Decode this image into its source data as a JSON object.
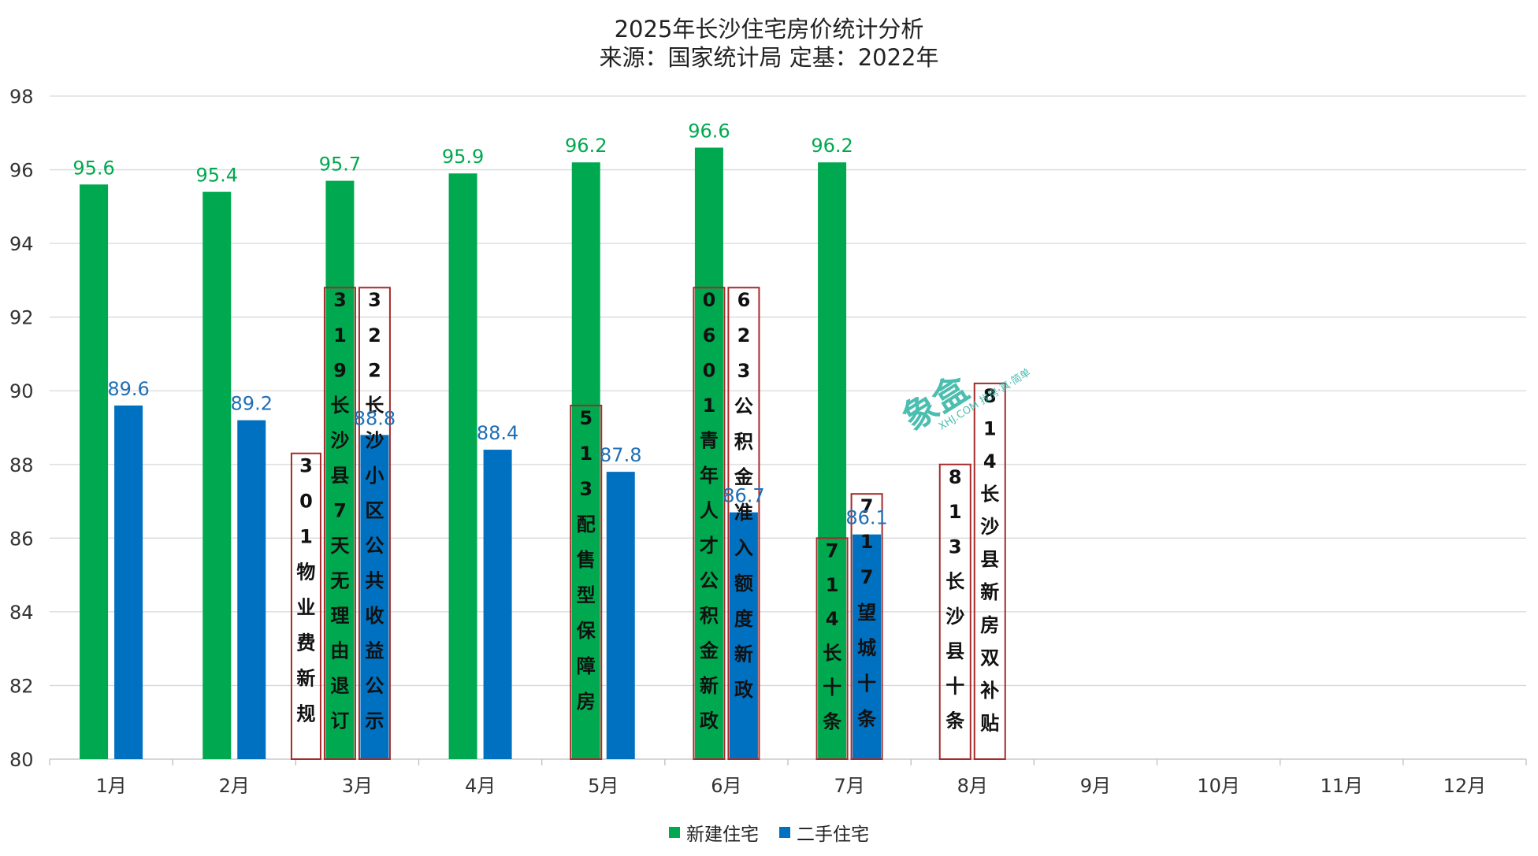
{
  "chart_data": {
    "type": "bar",
    "title": "2025年长沙住宅房价统计分析",
    "subtitle": "来源：国家统计局 定基：2022年",
    "categories": [
      "1月",
      "2月",
      "3月",
      "4月",
      "5月",
      "6月",
      "7月",
      "8月",
      "9月",
      "10月",
      "11月",
      "12月"
    ],
    "series": [
      {
        "name": "新建住宅",
        "color": "#00a94f",
        "label_color": "#00a94f",
        "values": [
          95.6,
          95.4,
          95.7,
          95.9,
          96.2,
          96.6,
          96.2,
          null,
          null,
          null,
          null,
          null
        ]
      },
      {
        "name": "二手住宅",
        "color": "#0070c0",
        "label_color": "#1f6fb5",
        "values": [
          89.6,
          89.2,
          88.8,
          88.4,
          87.8,
          86.7,
          86.1,
          null,
          null,
          null,
          null,
          null
        ]
      }
    ],
    "ylim": [
      80,
      98
    ],
    "yticks": [
      80,
      82,
      84,
      86,
      88,
      90,
      92,
      94,
      96,
      98
    ],
    "ytick_labels": [
      "80",
      "82",
      "84",
      "86",
      "88",
      "90",
      "92",
      "94",
      "96",
      "98"
    ],
    "grid": true,
    "legend_position": "bottom",
    "annotations": [
      {
        "text": "301物业费新规",
        "category": "3月",
        "slot": "left",
        "top_value": 88.3
      },
      {
        "text": "319长沙县7天无理由退订",
        "category": "3月",
        "slot": "series0",
        "top_value": 92.8
      },
      {
        "text": "322长沙小区公共收益公示",
        "category": "3月",
        "slot": "series1",
        "top_value": 92.8
      },
      {
        "text": "513配售型保障房",
        "category": "5月",
        "slot": "series0",
        "top_value": 89.6
      },
      {
        "text": "0601青年人才公积金新政",
        "category": "6月",
        "slot": "series0",
        "top_value": 92.8
      },
      {
        "text": "623公积金准入额度新政",
        "category": "6月",
        "slot": "series1",
        "top_value": 92.8
      },
      {
        "text": "714长十条",
        "category": "7月",
        "slot": "series0",
        "top_value": 86.0
      },
      {
        "text": "717望城十条",
        "category": "7月",
        "slot": "series1",
        "top_value": 87.2
      },
      {
        "text": "813长沙县十条",
        "category": "8月",
        "slot": "series0",
        "top_value": 88.0
      },
      {
        "text": "814长沙县新房双补贴",
        "category": "8月",
        "slot": "series1",
        "top_value": 90.2
      }
    ]
  },
  "watermark": {
    "text": "象盒",
    "sub": "XHJ.COM 找房·真·简单",
    "color": "#39b7a8"
  }
}
